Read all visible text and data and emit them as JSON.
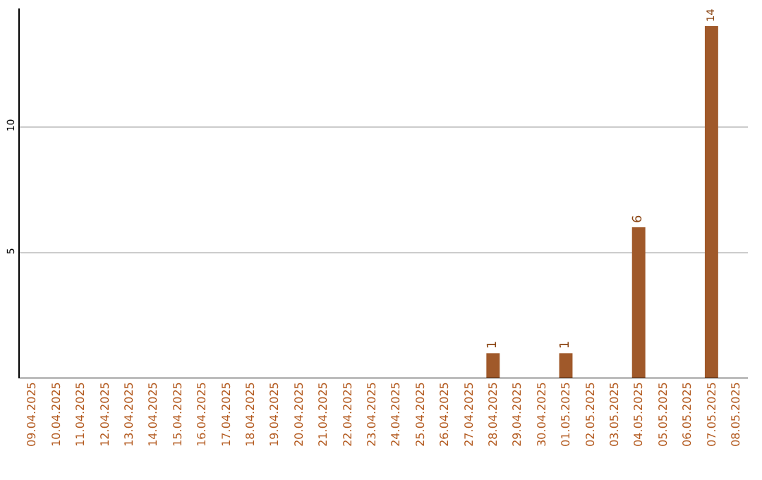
{
  "chart_data": {
    "type": "bar",
    "categories": [
      "09.04.2025",
      "10.04.2025",
      "11.04.2025",
      "12.04.2025",
      "13.04.2025",
      "14.04.2025",
      "15.04.2025",
      "16.04.2025",
      "17.04.2025",
      "18.04.2025",
      "19.04.2025",
      "20.04.2025",
      "21.04.2025",
      "22.04.2025",
      "23.04.2025",
      "24.04.2025",
      "25.04.2025",
      "26.04.2025",
      "27.04.2025",
      "28.04.2025",
      "29.04.2025",
      "30.04.2025",
      "01.05.2025",
      "02.05.2025",
      "03.05.2025",
      "04.05.2025",
      "05.05.2025",
      "06.05.2025",
      "07.05.2025",
      "08.05.2025"
    ],
    "values": [
      0,
      0,
      0,
      0,
      0,
      0,
      0,
      0,
      0,
      0,
      0,
      0,
      0,
      0,
      0,
      0,
      0,
      0,
      0,
      1,
      0,
      0,
      1,
      0,
      0,
      6,
      0,
      0,
      14,
      0
    ],
    "value_labels": [
      null,
      null,
      null,
      null,
      null,
      null,
      null,
      null,
      null,
      null,
      null,
      null,
      null,
      null,
      null,
      null,
      null,
      null,
      null,
      "1",
      null,
      null,
      "1",
      null,
      null,
      "6",
      null,
      null,
      "14",
      null
    ],
    "color": "#a0592a",
    "ylim": [
      0,
      14.7
    ],
    "yticks": [
      5,
      10
    ],
    "grid": "y"
  }
}
